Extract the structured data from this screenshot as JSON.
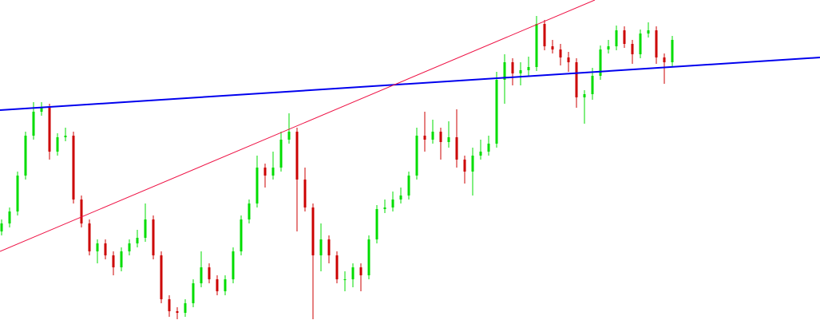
{
  "chart_data": {
    "type": "candlestick",
    "xlim": [
      -0.2,
      102.5
    ],
    "ylim": [
      0,
      401
    ],
    "up_color": "#00dd00",
    "down_color": "#cc0000",
    "ohlc": [
      [
        111,
        126,
        106,
        121
      ],
      [
        121,
        141,
        116,
        136
      ],
      [
        136,
        186,
        131,
        181
      ],
      [
        181,
        236,
        176,
        231
      ],
      [
        231,
        273,
        226,
        261
      ],
      [
        261,
        273,
        256,
        266
      ],
      [
        266,
        271,
        201,
        211
      ],
      [
        211,
        234,
        206,
        229
      ],
      [
        229,
        241,
        224,
        231
      ],
      [
        231,
        236,
        146,
        151
      ],
      [
        151,
        156,
        116,
        121
      ],
      [
        121,
        126,
        81,
        86
      ],
      [
        86,
        101,
        71,
        96
      ],
      [
        96,
        101,
        76,
        81
      ],
      [
        81,
        86,
        56,
        66
      ],
      [
        66,
        91,
        61,
        86
      ],
      [
        86,
        101,
        81,
        96
      ],
      [
        96,
        113,
        91,
        103
      ],
      [
        103,
        146,
        98,
        126
      ],
      [
        126,
        131,
        76,
        81
      ],
      [
        81,
        86,
        21,
        26
      ],
      [
        26,
        31,
        4,
        11
      ],
      [
        11,
        16,
        1,
        9
      ],
      [
        9,
        26,
        4,
        21
      ],
      [
        21,
        51,
        16,
        46
      ],
      [
        46,
        86,
        41,
        66
      ],
      [
        66,
        71,
        46,
        51
      ],
      [
        51,
        56,
        31,
        36
      ],
      [
        36,
        56,
        31,
        51
      ],
      [
        51,
        91,
        46,
        86
      ],
      [
        86,
        131,
        81,
        126
      ],
      [
        126,
        151,
        121,
        146
      ],
      [
        146,
        206,
        141,
        191
      ],
      [
        191,
        196,
        166,
        181
      ],
      [
        181,
        211,
        176,
        191
      ],
      [
        191,
        236,
        186,
        226
      ],
      [
        226,
        259,
        221,
        236
      ],
      [
        236,
        241,
        111,
        176
      ],
      [
        176,
        191,
        136,
        141
      ],
      [
        141,
        146,
        1,
        81
      ],
      [
        81,
        121,
        61,
        101
      ],
      [
        101,
        106,
        71,
        81
      ],
      [
        81,
        86,
        46,
        51
      ],
      [
        51,
        61,
        36,
        51
      ],
      [
        51,
        71,
        41,
        66
      ],
      [
        66,
        71,
        36,
        56
      ],
      [
        56,
        106,
        51,
        101
      ],
      [
        101,
        144,
        96,
        139
      ],
      [
        139,
        151,
        134,
        141
      ],
      [
        141,
        161,
        136,
        151
      ],
      [
        151,
        166,
        146,
        156
      ],
      [
        156,
        186,
        151,
        181
      ],
      [
        181,
        241,
        176,
        231
      ],
      [
        231,
        261,
        211,
        226
      ],
      [
        226,
        251,
        221,
        236
      ],
      [
        236,
        241,
        201,
        223
      ],
      [
        223,
        249,
        216,
        229
      ],
      [
        229,
        264,
        191,
        201
      ],
      [
        201,
        206,
        171,
        186
      ],
      [
        186,
        216,
        156,
        206
      ],
      [
        206,
        226,
        201,
        211
      ],
      [
        211,
        231,
        206,
        221
      ],
      [
        221,
        311,
        216,
        301
      ],
      [
        301,
        333,
        271,
        323
      ],
      [
        323,
        328,
        294,
        309
      ],
      [
        309,
        323,
        294,
        313
      ],
      [
        313,
        330,
        306,
        317
      ],
      [
        317,
        381,
        312,
        371
      ],
      [
        371,
        376,
        338,
        343
      ],
      [
        343,
        351,
        334,
        339
      ],
      [
        339,
        346,
        319,
        329
      ],
      [
        329,
        336,
        311,
        323
      ],
      [
        323,
        328,
        266,
        279
      ],
      [
        279,
        288,
        246,
        283
      ],
      [
        283,
        316,
        276,
        306
      ],
      [
        306,
        344,
        301,
        339
      ],
      [
        339,
        351,
        334,
        343
      ],
      [
        343,
        369,
        338,
        363
      ],
      [
        363,
        368,
        341,
        346
      ],
      [
        346,
        351,
        321,
        333
      ],
      [
        333,
        364,
        328,
        359
      ],
      [
        359,
        373,
        354,
        363
      ],
      [
        363,
        368,
        321,
        329
      ],
      [
        329,
        334,
        296,
        323
      ],
      [
        323,
        356,
        318,
        351
      ]
    ],
    "trendlines": [
      {
        "color": "#0000ee",
        "x": [
          -0.2,
          102.5
        ],
        "values": [
          263,
          329
        ]
      },
      {
        "color": "#ee1144",
        "x": [
          -0.2,
          74.3
        ],
        "values": [
          86,
          401
        ]
      }
    ]
  }
}
